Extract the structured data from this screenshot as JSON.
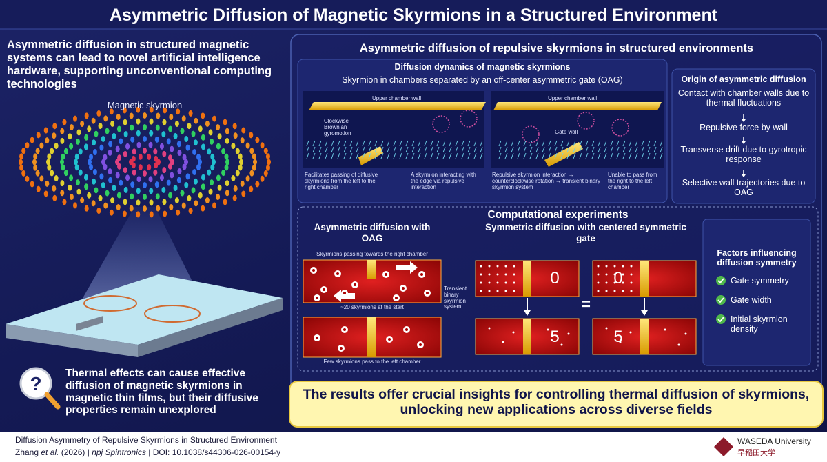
{
  "header": {
    "title": "Asymmetric Diffusion of Magnetic Skyrmions in a Structured Environment"
  },
  "left": {
    "intro": "Asymmetric diffusion in structured magnetic systems can lead to novel artificial intelligence hardware, supporting unconventional computing technologies",
    "skyrmion_label": "Magnetic skyrmion",
    "thermal": "Thermal effects can cause effective diffusion of magnetic skyrmions in magnetic thin films, but their diffusive properties remain unexplored"
  },
  "right": {
    "heading": "Asymmetric diffusion of repulsive skyrmions in structured environments",
    "dynamics": {
      "title": "Diffusion dynamics of magnetic skyrmions",
      "subtitle": "Skyrmion in chambers separated by an off-center asymmetric gate (OAG)",
      "panel1": {
        "wall": "Upper chamber wall",
        "motion": "Clockwise Brownian gyromotion",
        "caption_left": "Facilitates passing of diffusive skyrmions from the left to the right chamber",
        "caption_right": "A skyrmion interacting with the edge via repulsive interaction"
      },
      "panel2": {
        "wall": "Upper chamber wall",
        "gate": "Gate wall",
        "caption_left": "Repulsive skyrmion interaction → counterclockwise rotation → transient binary skyrmion system",
        "caption_right": "Unable to pass from the right to the left chamber"
      }
    },
    "origin": {
      "title": "Origin of asymmetric diffusion",
      "steps": [
        "Contact with chamber walls due to thermal fluctuations",
        "Repulsive force by wall",
        "Transverse drift due to gyrotropic response",
        "Selective wall trajectories due to OAG"
      ]
    },
    "experiments": {
      "title": "Computational experiments",
      "asymmetric": {
        "title": "Asymmetric diffusion with OAG",
        "top_caption": "Skyrmions passing towards the right chamber",
        "start_caption": "~20 skyrmions at the start",
        "binary": "Transient binary skyrmion system",
        "bottom_caption": "Few skyrmions pass to the left chamber"
      },
      "symmetric": {
        "title": "Symmetric diffusion with centered symmetric gate",
        "counts": [
          "0",
          "0",
          "5",
          "5"
        ],
        "equals": "="
      },
      "factors": {
        "title": "Factors influencing diffusion symmetry",
        "items": [
          "Gate symmetry",
          "Gate width",
          "Initial skyrmion density"
        ]
      }
    },
    "conclusion": "The results offer crucial insights for controlling thermal diffusion of skyrmions, unlocking new applications across diverse fields"
  },
  "footer": {
    "paper": "Diffusion Asymmetry of Repulsive Skyrmions in Structured Environment",
    "citation": [
      "Zhang ",
      "et al.",
      " (2026) | ",
      "npj Spintronics",
      " | DOI: 10.1038/s44306-026-00154-y"
    ],
    "university": "WASEDA University",
    "university_jp": "早稲田大学"
  }
}
